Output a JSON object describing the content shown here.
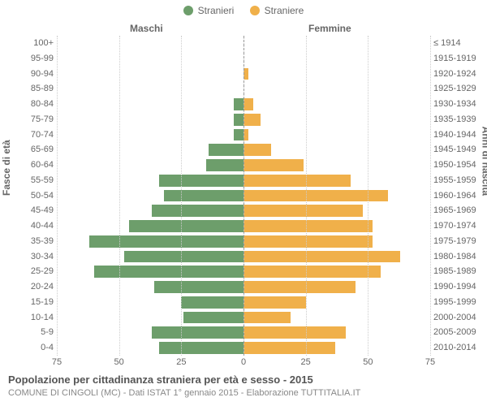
{
  "legend": {
    "male": {
      "label": "Stranieri",
      "color": "#6d9e6b"
    },
    "female": {
      "label": "Straniere",
      "color": "#f0b04a"
    }
  },
  "columns": {
    "male": "Maschi",
    "female": "Femmine"
  },
  "axis_titles": {
    "left": "Fasce di età",
    "right": "Anni di nascita"
  },
  "title": "Popolazione per cittadinanza straniera per età e sesso - 2015",
  "subtitle": "COMUNE DI CINGOLI (MC) - Dati ISTAT 1° gennaio 2015 - Elaborazione TUTTITALIA.IT",
  "chart": {
    "type": "population-pyramid",
    "xmax": 75,
    "xticks": [
      75,
      50,
      25,
      0,
      25,
      50,
      75
    ],
    "background_color": "#ffffff",
    "grid_color": "#cccccc",
    "bar_height_ratio": 0.78
  },
  "bands": [
    {
      "age": "100+",
      "birth": "≤ 1914",
      "m": 0,
      "f": 0
    },
    {
      "age": "95-99",
      "birth": "1915-1919",
      "m": 0,
      "f": 0
    },
    {
      "age": "90-94",
      "birth": "1920-1924",
      "m": 0,
      "f": 2
    },
    {
      "age": "85-89",
      "birth": "1925-1929",
      "m": 0,
      "f": 0
    },
    {
      "age": "80-84",
      "birth": "1930-1934",
      "m": 4,
      "f": 4
    },
    {
      "age": "75-79",
      "birth": "1935-1939",
      "m": 4,
      "f": 7
    },
    {
      "age": "70-74",
      "birth": "1940-1944",
      "m": 4,
      "f": 2
    },
    {
      "age": "65-69",
      "birth": "1945-1949",
      "m": 14,
      "f": 11
    },
    {
      "age": "60-64",
      "birth": "1950-1954",
      "m": 15,
      "f": 24
    },
    {
      "age": "55-59",
      "birth": "1955-1959",
      "m": 34,
      "f": 43
    },
    {
      "age": "50-54",
      "birth": "1960-1964",
      "m": 32,
      "f": 58
    },
    {
      "age": "45-49",
      "birth": "1965-1969",
      "m": 37,
      "f": 48
    },
    {
      "age": "40-44",
      "birth": "1970-1974",
      "m": 46,
      "f": 52
    },
    {
      "age": "35-39",
      "birth": "1975-1979",
      "m": 62,
      "f": 52
    },
    {
      "age": "30-34",
      "birth": "1980-1984",
      "m": 48,
      "f": 63
    },
    {
      "age": "25-29",
      "birth": "1985-1989",
      "m": 60,
      "f": 55
    },
    {
      "age": "20-24",
      "birth": "1990-1994",
      "m": 36,
      "f": 45
    },
    {
      "age": "15-19",
      "birth": "1995-1999",
      "m": 25,
      "f": 25
    },
    {
      "age": "10-14",
      "birth": "2000-2004",
      "m": 24,
      "f": 19
    },
    {
      "age": "5-9",
      "birth": "2005-2009",
      "m": 37,
      "f": 41
    },
    {
      "age": "0-4",
      "birth": "2010-2014",
      "m": 34,
      "f": 37
    }
  ]
}
